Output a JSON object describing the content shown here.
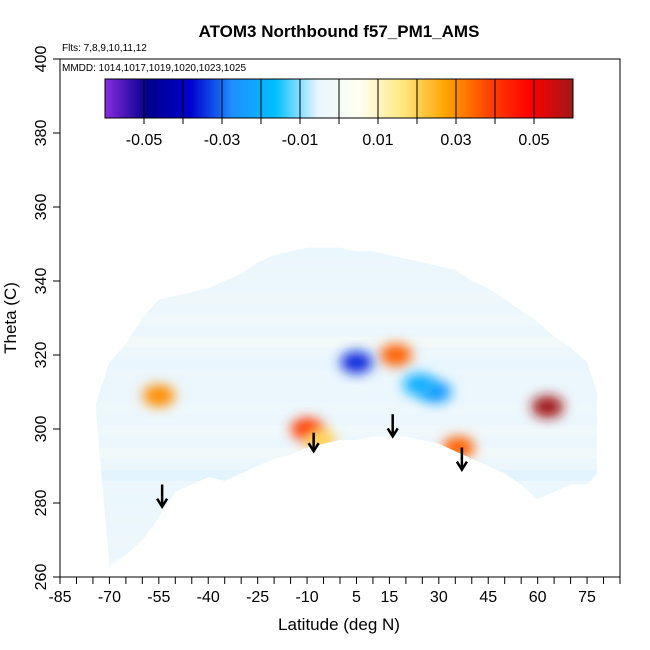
{
  "chart_data": {
    "type": "heatmap",
    "title": "ATOM3 Northbound f57_PM1_AMS",
    "notes": [
      "Flts: 7,8,9,10,11,12",
      "MMDD: 1014,1017,1019,1020,1023,1025"
    ],
    "xlabel": "Latitude (deg N)",
    "ylabel": "Theta (C)",
    "xlim": [
      -85,
      85
    ],
    "ylim": [
      260,
      400
    ],
    "x_ticks": [
      -85,
      -70,
      -55,
      -40,
      -25,
      -10,
      5,
      15,
      30,
      45,
      60,
      75
    ],
    "y_ticks": [
      260,
      280,
      300,
      320,
      340,
      360,
      380,
      400
    ],
    "colorbar": {
      "range": [
        -0.06,
        0.06
      ],
      "tick_values": [
        -0.05,
        -0.03,
        -0.01,
        0.01,
        0.03,
        0.05
      ],
      "tick_labels": [
        "-0.05",
        "-0.03",
        "-0.01",
        "0.01",
        "0.03",
        "0.05"
      ],
      "stops": [
        "#8a2be2",
        "#00008b",
        "#0000cd",
        "#1e90ff",
        "#00bfff",
        "#e8f6ff",
        "#fffff0",
        "#ffe880",
        "#ffa500",
        "#ff4500",
        "#ff0000",
        "#a01818"
      ]
    },
    "coverage": {
      "lat": [
        -74,
        -70,
        -65,
        -60,
        -55,
        -50,
        -45,
        -40,
        -35,
        -30,
        -25,
        -20,
        -15,
        -10,
        -5,
        0,
        5,
        10,
        15,
        20,
        25,
        30,
        35,
        40,
        45,
        50,
        55,
        60,
        65,
        70,
        75,
        78
      ],
      "theta_min": [
        304,
        263,
        266,
        270,
        276,
        283,
        285,
        287,
        286,
        288,
        290,
        292,
        293,
        295,
        296,
        297,
        297,
        298,
        298,
        298,
        297,
        296,
        294,
        292,
        290,
        288,
        285,
        281,
        283,
        285,
        285,
        288
      ],
      "theta_max": [
        307,
        318,
        323,
        330,
        335,
        336,
        337,
        338,
        340,
        342,
        345,
        347,
        348,
        349,
        349,
        349,
        348,
        348,
        347,
        346,
        345,
        344,
        343,
        340,
        338,
        335,
        332,
        329,
        325,
        322,
        318,
        310
      ]
    },
    "features": [
      {
        "lat": -55,
        "theta": 309,
        "value": 0.03
      },
      {
        "lat": -10,
        "theta": 300,
        "value": 0.04
      },
      {
        "lat": -6,
        "theta": 297,
        "value": 0.02
      },
      {
        "lat": 17,
        "theta": 320,
        "value": 0.035
      },
      {
        "lat": 36,
        "theta": 295,
        "value": 0.035
      },
      {
        "lat": 63,
        "theta": 306,
        "value": 0.06
      },
      {
        "lat": 5,
        "theta": 318,
        "value": -0.035
      },
      {
        "lat": 29,
        "theta": 310,
        "value": -0.025
      },
      {
        "lat": 24,
        "theta": 312,
        "value": -0.02
      }
    ],
    "arrows": [
      {
        "lat": -54,
        "theta_top": 285,
        "theta_bottom": 279
      },
      {
        "lat": -8,
        "theta_top": 299,
        "theta_bottom": 294
      },
      {
        "lat": 16,
        "theta_top": 304,
        "theta_bottom": 298
      },
      {
        "lat": 37,
        "theta_top": 295,
        "theta_bottom": 289
      }
    ]
  }
}
